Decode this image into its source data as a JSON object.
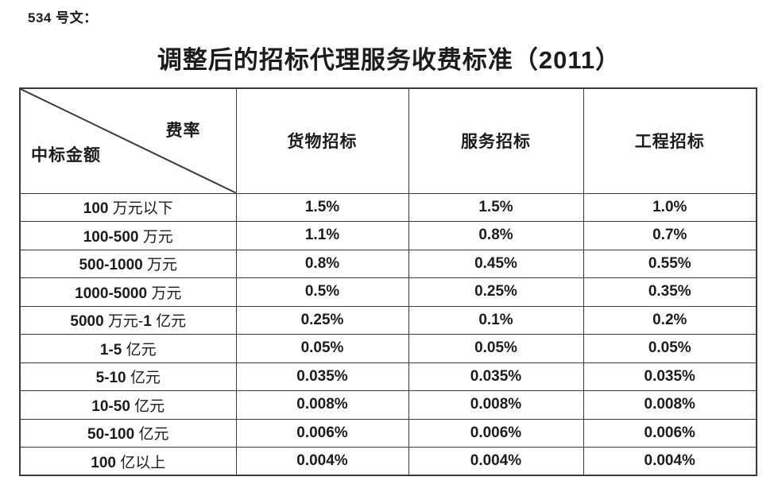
{
  "doc_label": "534 号文：",
  "title": "调整后的招标代理服务收费标准（2011）",
  "table": {
    "corner_top_right": "费率",
    "corner_bottom_left": "中标金额",
    "columns": [
      "货物招标",
      "服务招标",
      "工程招标"
    ],
    "rows": [
      {
        "amount": "100 万元以下",
        "rates": [
          "1.5%",
          "1.5%",
          "1.0%"
        ]
      },
      {
        "amount": "100-500 万元",
        "rates": [
          "1.1%",
          "0.8%",
          "0.7%"
        ]
      },
      {
        "amount": "500-1000 万元",
        "rates": [
          "0.8%",
          "0.45%",
          "0.55%"
        ]
      },
      {
        "amount": "1000-5000 万元",
        "rates": [
          "0.5%",
          "0.25%",
          "0.35%"
        ]
      },
      {
        "amount": "5000 万元-1 亿元",
        "rates": [
          "0.25%",
          "0.1%",
          "0.2%"
        ]
      },
      {
        "amount": "1-5 亿元",
        "rates": [
          "0.05%",
          "0.05%",
          "0.05%"
        ]
      },
      {
        "amount": "5-10 亿元",
        "rates": [
          "0.035%",
          "0.035%",
          "0.035%"
        ]
      },
      {
        "amount": "10-50 亿元",
        "rates": [
          "0.008%",
          "0.008%",
          "0.008%"
        ]
      },
      {
        "amount": "50-100 亿元",
        "rates": [
          "0.006%",
          "0.006%",
          "0.006%"
        ]
      },
      {
        "amount": "100 亿以上",
        "rates": [
          "0.004%",
          "0.004%",
          "0.004%"
        ]
      }
    ]
  },
  "colors": {
    "text": "#1c1c1c",
    "border": "#3a3a3a",
    "background": "#ffffff"
  }
}
